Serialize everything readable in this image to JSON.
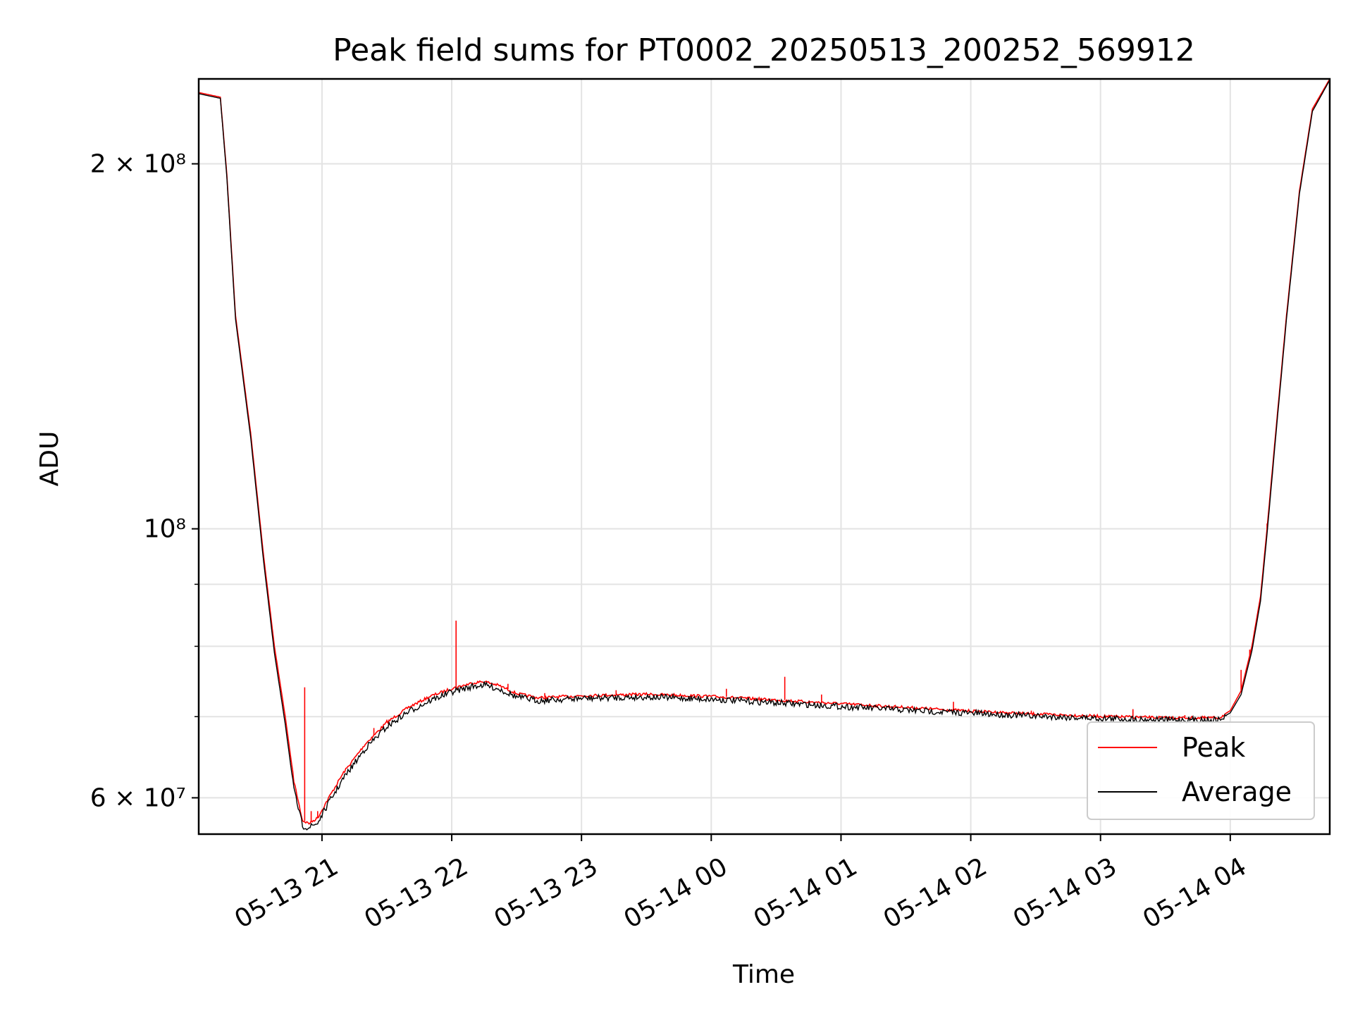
{
  "chart_data": {
    "type": "line",
    "title": "Peak field sums for PT0002_20250513_200252_569912",
    "xlabel": "Time",
    "ylabel": "ADU",
    "yscale": "log",
    "xlim": [
      "2025-05-13 20:03",
      "2025-05-14 04:46"
    ],
    "ylim": [
      56000000,
      235000000
    ],
    "grid": true,
    "legend_position": "lower-right",
    "x_ticks": [
      {
        "value": "2025-05-13 21:00",
        "label": "05-13 21"
      },
      {
        "value": "2025-05-13 22:00",
        "label": "05-13 22"
      },
      {
        "value": "2025-05-13 23:00",
        "label": "05-13 23"
      },
      {
        "value": "2025-05-14 00:00",
        "label": "05-14 00"
      },
      {
        "value": "2025-05-14 01:00",
        "label": "05-14 01"
      },
      {
        "value": "2025-05-14 02:00",
        "label": "05-14 02"
      },
      {
        "value": "2025-05-14 03:00",
        "label": "05-14 03"
      },
      {
        "value": "2025-05-14 04:00",
        "label": "05-14 04"
      }
    ],
    "y_ticks": [
      {
        "value": 60000000,
        "label": "6 × 10⁷"
      },
      {
        "value": 100000000,
        "label": "10⁸"
      },
      {
        "value": 200000000,
        "label": "2 × 10⁸"
      }
    ],
    "y_minor_grid": [
      70000000,
      80000000,
      90000000
    ],
    "series": [
      {
        "name": "Peak",
        "color": "#ff0000",
        "points": [
          [
            "2025-05-13 20:03",
            229000000
          ],
          [
            "2025-05-13 20:13",
            227000000
          ],
          [
            "2025-05-13 20:16",
            196000000
          ],
          [
            "2025-05-13 20:20",
            150000000
          ],
          [
            "2025-05-13 20:27",
            120000000
          ],
          [
            "2025-05-13 20:33",
            95000000
          ],
          [
            "2025-05-13 20:38",
            80000000
          ],
          [
            "2025-05-13 20:43",
            70000000
          ],
          [
            "2025-05-13 20:47",
            62000000
          ],
          [
            "2025-05-13 20:51",
            57500000
          ],
          [
            "2025-05-13 20:54",
            57200000
          ],
          [
            "2025-05-13 20:58",
            57800000
          ],
          [
            "2025-05-13 21:03",
            60000000
          ],
          [
            "2025-05-13 21:10",
            63000000
          ],
          [
            "2025-05-13 21:20",
            66500000
          ],
          [
            "2025-05-13 21:30",
            69300000
          ],
          [
            "2025-05-13 21:40",
            71300000
          ],
          [
            "2025-05-13 21:50",
            72800000
          ],
          [
            "2025-05-13 22:00",
            73900000
          ],
          [
            "2025-05-13 22:10",
            74700000
          ],
          [
            "2025-05-13 22:15",
            74900000
          ],
          [
            "2025-05-13 22:22",
            74300000
          ],
          [
            "2025-05-13 22:30",
            73200000
          ],
          [
            "2025-05-13 22:40",
            72600000
          ],
          [
            "2025-05-13 23:00",
            72900000
          ],
          [
            "2025-05-13 23:30",
            73100000
          ],
          [
            "2025-05-14 00:00",
            72800000
          ],
          [
            "2025-05-14 00:30",
            72300000
          ],
          [
            "2025-05-14 01:00",
            71800000
          ],
          [
            "2025-05-14 01:30",
            71300000
          ],
          [
            "2025-05-14 02:00",
            70800000
          ],
          [
            "2025-05-14 02:30",
            70400000
          ],
          [
            "2025-05-14 03:00",
            70100000
          ],
          [
            "2025-05-14 03:30",
            69900000
          ],
          [
            "2025-05-14 03:55",
            69900000
          ],
          [
            "2025-05-14 04:00",
            70800000
          ],
          [
            "2025-05-14 04:05",
            73500000
          ],
          [
            "2025-05-14 04:10",
            80000000
          ],
          [
            "2025-05-14 04:14",
            88000000
          ],
          [
            "2025-05-14 04:17",
            100000000
          ],
          [
            "2025-05-14 04:21",
            120000000
          ],
          [
            "2025-05-14 04:26",
            150000000
          ],
          [
            "2025-05-14 04:32",
            190000000
          ],
          [
            "2025-05-14 04:38",
            222000000
          ],
          [
            "2025-05-14 04:46",
            235000000
          ]
        ],
        "spikes": [
          [
            "2025-05-13 20:52",
            74000000
          ],
          [
            "2025-05-13 20:55",
            58500000
          ],
          [
            "2025-05-13 20:58",
            58500000
          ],
          [
            "2025-05-13 21:24",
            68500000
          ],
          [
            "2025-05-13 21:30",
            69600000
          ],
          [
            "2025-05-13 22:02",
            84000000
          ],
          [
            "2025-05-13 22:26",
            74500000
          ],
          [
            "2025-05-13 22:43",
            73200000
          ],
          [
            "2025-05-13 23:16",
            73600000
          ],
          [
            "2025-05-14 00:07",
            73800000
          ],
          [
            "2025-05-14 00:34",
            75500000
          ],
          [
            "2025-05-14 00:51",
            73000000
          ],
          [
            "2025-05-14 01:52",
            72000000
          ],
          [
            "2025-05-14 02:28",
            70800000
          ],
          [
            "2025-05-14 03:15",
            71000000
          ],
          [
            "2025-05-14 03:39",
            70200000
          ],
          [
            "2025-05-14 04:05",
            76500000
          ],
          [
            "2025-05-14 04:09",
            79500000
          ],
          [
            "2025-05-14 04:17",
            101000000
          ]
        ]
      },
      {
        "name": "Average",
        "color": "#000000",
        "points": [
          [
            "2025-05-13 20:03",
            228500000
          ],
          [
            "2025-05-13 20:13",
            226500000
          ],
          [
            "2025-05-13 20:16",
            195000000
          ],
          [
            "2025-05-13 20:20",
            149000000
          ],
          [
            "2025-05-13 20:27",
            119000000
          ],
          [
            "2025-05-13 20:33",
            94000000
          ],
          [
            "2025-05-13 20:38",
            79000000
          ],
          [
            "2025-05-13 20:43",
            69000000
          ],
          [
            "2025-05-13 20:47",
            61000000
          ],
          [
            "2025-05-13 20:51",
            57000000
          ],
          [
            "2025-05-13 20:54",
            56800000
          ],
          [
            "2025-05-13 20:58",
            57300000
          ],
          [
            "2025-05-13 21:03",
            59500000
          ],
          [
            "2025-05-13 21:10",
            62400000
          ],
          [
            "2025-05-13 21:20",
            66000000
          ],
          [
            "2025-05-13 21:30",
            68800000
          ],
          [
            "2025-05-13 21:40",
            70800000
          ],
          [
            "2025-05-13 21:50",
            72300000
          ],
          [
            "2025-05-13 22:00",
            73500000
          ],
          [
            "2025-05-13 22:10",
            74300000
          ],
          [
            "2025-05-13 22:15",
            74500000
          ],
          [
            "2025-05-13 22:22",
            73900000
          ],
          [
            "2025-05-13 22:30",
            72800000
          ],
          [
            "2025-05-13 22:40",
            72300000
          ],
          [
            "2025-05-13 23:00",
            72600000
          ],
          [
            "2025-05-13 23:30",
            72800000
          ],
          [
            "2025-05-14 00:00",
            72500000
          ],
          [
            "2025-05-14 00:30",
            72000000
          ],
          [
            "2025-05-14 01:00",
            71500000
          ],
          [
            "2025-05-14 01:30",
            71000000
          ],
          [
            "2025-05-14 02:00",
            70600000
          ],
          [
            "2025-05-14 02:30",
            70200000
          ],
          [
            "2025-05-14 03:00",
            69900000
          ],
          [
            "2025-05-14 03:30",
            69700000
          ],
          [
            "2025-05-14 03:55",
            69700000
          ],
          [
            "2025-05-14 04:00",
            70500000
          ],
          [
            "2025-05-14 04:05",
            73000000
          ],
          [
            "2025-05-14 04:10",
            79300000
          ],
          [
            "2025-05-14 04:14",
            87200000
          ],
          [
            "2025-05-14 04:17",
            99000000
          ],
          [
            "2025-05-14 04:21",
            119000000
          ],
          [
            "2025-05-14 04:26",
            149000000
          ],
          [
            "2025-05-14 04:32",
            189000000
          ],
          [
            "2025-05-14 04:38",
            221000000
          ],
          [
            "2025-05-14 04:46",
            234500000
          ]
        ]
      }
    ]
  }
}
